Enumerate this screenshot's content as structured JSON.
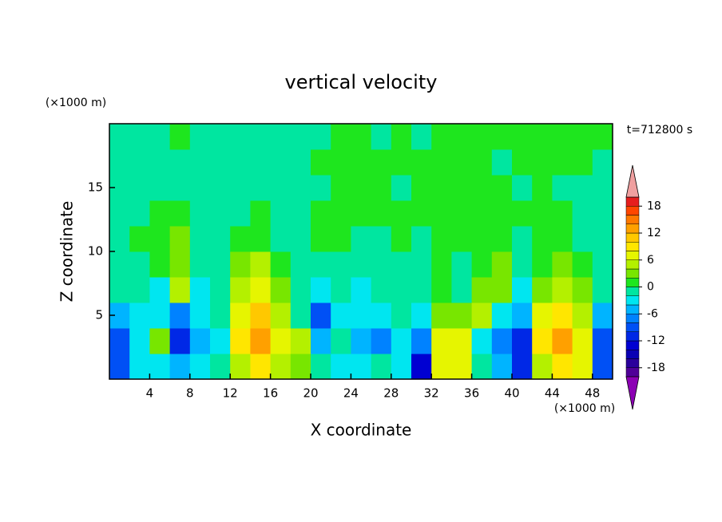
{
  "chart_data": {
    "type": "contour",
    "title": "vertical velocity",
    "x_label": "X coordinate",
    "y_label": "Z coordinate",
    "x_unit": "(×1000 m)",
    "y_unit": "(×1000 m)",
    "time_label": "t=712800 s",
    "xlim": [
      0,
      50
    ],
    "ylim": [
      0,
      20
    ],
    "xticks": [
      4,
      8,
      12,
      16,
      20,
      24,
      28,
      32,
      36,
      40,
      44,
      48
    ],
    "yticks": [
      5,
      10,
      15
    ],
    "x": [
      1,
      3,
      5,
      7,
      9,
      11,
      13,
      15,
      17,
      19,
      21,
      23,
      25,
      27,
      29,
      31,
      33,
      35,
      37,
      39,
      41,
      43,
      45,
      47,
      49
    ],
    "y": [
      1,
      3,
      5,
      7,
      9,
      11,
      13,
      15,
      17,
      19
    ],
    "z": [
      [
        -9,
        -3,
        -4,
        -6,
        -3,
        -1,
        5,
        8,
        4,
        3,
        -1,
        -3,
        -4,
        -1,
        -4,
        -13,
        7,
        7,
        -2,
        -6,
        -11,
        5,
        9,
        6,
        -9
      ],
      [
        -9,
        -4,
        3,
        -11,
        -5,
        -3,
        8,
        13,
        6,
        5,
        -5,
        -2,
        -6,
        -7,
        -3,
        -8,
        7,
        7,
        -3,
        -7,
        -11,
        8,
        12,
        7,
        -10
      ],
      [
        -5,
        -3,
        -4,
        -7,
        -4,
        -2,
        7,
        11,
        5,
        -1,
        -9,
        -3,
        -4,
        -3,
        -2,
        -4,
        3,
        2,
        5,
        -4,
        -6,
        6,
        9,
        5,
        -5
      ],
      [
        -2,
        -1,
        -3,
        5,
        -3,
        -1,
        4,
        7,
        3,
        -2,
        -4,
        -2,
        -3,
        -2,
        -1,
        -2,
        1,
        -1,
        3,
        2,
        -3,
        3,
        5,
        2,
        -2
      ],
      [
        -1,
        -1,
        1,
        3,
        -2,
        -1,
        2,
        4,
        1,
        -1,
        -2,
        -1,
        -1,
        -1,
        -1,
        -1,
        1,
        -1,
        1,
        3,
        -1,
        1,
        2,
        1,
        -1
      ],
      [
        -1,
        1,
        1,
        3,
        -1,
        -1,
        1,
        1,
        -1,
        -1,
        1,
        1,
        -1,
        -1,
        1,
        -1,
        1,
        1,
        1,
        1,
        -1,
        1,
        1,
        -1,
        -1
      ],
      [
        -1,
        -1,
        1,
        1,
        -1,
        -1,
        -1,
        1,
        -1,
        -1,
        1,
        1,
        1,
        1,
        1,
        1,
        1,
        1,
        1,
        1,
        1,
        1,
        1,
        -1,
        -1
      ],
      [
        -1,
        -1,
        -1,
        -1,
        -1,
        -1,
        -1,
        -1,
        -1,
        -1,
        -1,
        1,
        1,
        1,
        -1,
        1,
        1,
        1,
        1,
        1,
        -1,
        1,
        -1,
        -1,
        -1
      ],
      [
        -1,
        -1,
        -1,
        -1,
        -1,
        -1,
        -1,
        -1,
        -1,
        -1,
        1,
        1,
        1,
        1,
        1,
        1,
        1,
        1,
        1,
        -1,
        1,
        1,
        1,
        1,
        -1
      ],
      [
        -1,
        -1,
        -1,
        1,
        -1,
        -1,
        -1,
        -1,
        -1,
        -1,
        -1,
        1,
        1,
        -1,
        1,
        -1,
        1,
        1,
        1,
        1,
        1,
        1,
        1,
        1,
        1
      ]
    ],
    "levels": [
      -20,
      -18,
      -16,
      -14,
      -12,
      -10,
      -8,
      -6,
      -4,
      -2,
      0,
      2,
      4,
      6,
      8,
      10,
      12,
      14,
      16,
      18,
      20
    ],
    "colors": [
      "#500098",
      "#2a009c",
      "#0a00b4",
      "#0000d2",
      "#0028e6",
      "#0050f5",
      "#0082ff",
      "#00b4ff",
      "#00e6f0",
      "#00e6a0",
      "#1ee61e",
      "#78e600",
      "#b4f000",
      "#e6f500",
      "#ffe600",
      "#ffc800",
      "#ffa000",
      "#ff7800",
      "#ff4600",
      "#e61e1e"
    ],
    "over_color": "#f0a0a0",
    "under_color": "#8c00b4",
    "colorbar_ticks": [
      -18,
      -12,
      -6,
      0,
      6,
      12,
      18
    ]
  }
}
